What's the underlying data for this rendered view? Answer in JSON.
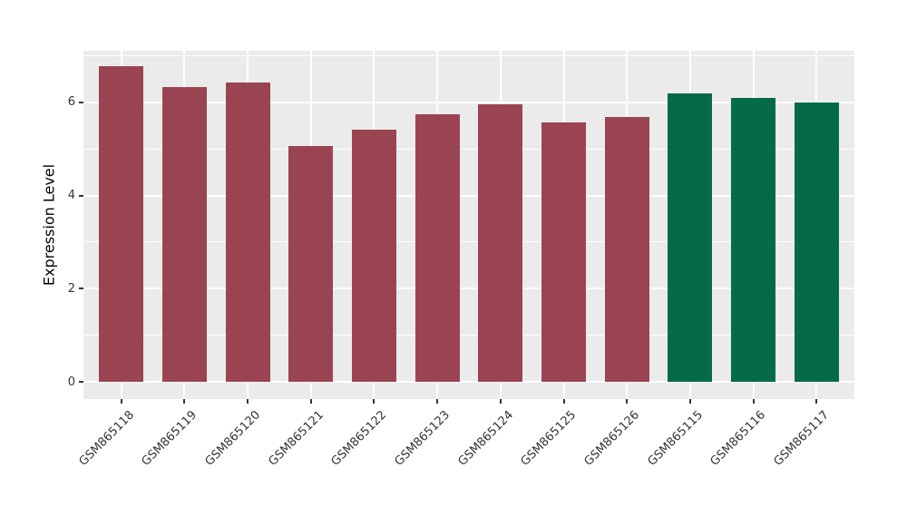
{
  "chart_data": {
    "type": "bar",
    "title": "",
    "xlabel": "",
    "ylabel": "Expression Level",
    "categories": [
      "GSM865118",
      "GSM865119",
      "GSM865120",
      "GSM865121",
      "GSM865122",
      "GSM865123",
      "GSM865124",
      "GSM865125",
      "GSM865126",
      "GSM865115",
      "GSM865116",
      "GSM865117"
    ],
    "values": [
      6.77,
      6.33,
      6.43,
      5.07,
      5.41,
      5.74,
      5.97,
      5.57,
      5.69,
      6.2,
      6.1,
      6.0
    ],
    "groups": [
      {
        "name": "samples-118-126",
        "color": "#9B4451",
        "indices": [
          0,
          1,
          2,
          3,
          4,
          5,
          6,
          7,
          8
        ]
      },
      {
        "name": "samples-115-117",
        "color": "#046B46",
        "indices": [
          9,
          10,
          11
        ]
      }
    ],
    "bar_colors": [
      "#9B4451",
      "#9B4451",
      "#9B4451",
      "#9B4451",
      "#9B4451",
      "#9B4451",
      "#9B4451",
      "#9B4451",
      "#9B4451",
      "#046B46",
      "#046B46",
      "#046B46"
    ],
    "yticks": [
      0,
      2,
      4,
      6
    ],
    "minor_gridlines": [
      1,
      3,
      5,
      7
    ],
    "ylim": [
      -0.37,
      7.11
    ],
    "bar_width_fraction": 0.7,
    "panel_bg": "#EBEBEB",
    "grid_color": "#FFFFFF",
    "axis_text_color": "#333333",
    "tick_mark_color": "#333333",
    "legend": "none"
  }
}
